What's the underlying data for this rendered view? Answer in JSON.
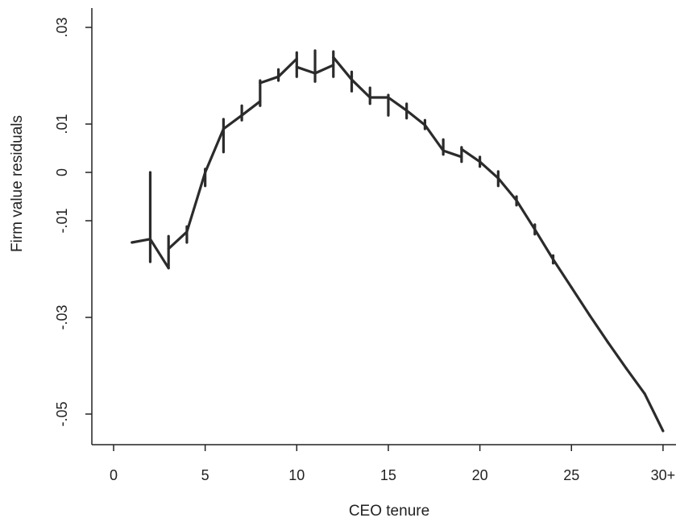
{
  "chart_data": {
    "type": "line",
    "title": "",
    "xlabel": "CEO tenure",
    "ylabel": "Firm value residuals",
    "xlim": [
      -0.5,
      30.5
    ],
    "ylim": [
      -0.055,
      0.0305
    ],
    "grid": false,
    "legend": "none",
    "x_ticks": [
      {
        "value": 0,
        "label": "0"
      },
      {
        "value": 5,
        "label": "5"
      },
      {
        "value": 10,
        "label": "10"
      },
      {
        "value": 15,
        "label": "15"
      },
      {
        "value": 20,
        "label": "20"
      },
      {
        "value": 25,
        "label": "25"
      },
      {
        "value": 30,
        "label": "30+"
      }
    ],
    "y_ticks": [
      {
        "value": 0.03,
        "label": ".03"
      },
      {
        "value": 0.01,
        "label": ".01"
      },
      {
        "value": 0,
        "label": "0"
      },
      {
        "value": -0.01,
        "label": "-.01"
      },
      {
        "value": -0.03,
        "label": "-.03"
      },
      {
        "value": -0.05,
        "label": "-.05"
      }
    ],
    "series": [
      {
        "color": "#2b2b2b",
        "segments": [
          {
            "x": [
              1,
              2
            ],
            "y": [
              -0.0145,
              -0.0138
            ]
          },
          {
            "x": [
              2,
              3
            ],
            "y": [
              -0.0138,
              -0.0198
            ]
          },
          {
            "x": [
              3,
              4
            ],
            "y": [
              -0.0158,
              -0.0123
            ]
          },
          {
            "x": [
              4,
              5
            ],
            "y": [
              -0.0123,
              0.0
            ]
          },
          {
            "x": [
              5,
              6
            ],
            "y": [
              0.0,
              0.009
            ]
          },
          {
            "x": [
              6,
              7
            ],
            "y": [
              0.009,
              0.0118
            ]
          },
          {
            "x": [
              7,
              8
            ],
            "y": [
              0.0118,
              0.0147
            ]
          },
          {
            "x": [
              8,
              9
            ],
            "y": [
              0.0185,
              0.0198
            ]
          },
          {
            "x": [
              9,
              10
            ],
            "y": [
              0.0198,
              0.0235
            ]
          },
          {
            "x": [
              10,
              11
            ],
            "y": [
              0.0218,
              0.0205
            ]
          },
          {
            "x": [
              11,
              12
            ],
            "y": [
              0.0205,
              0.0222
            ]
          },
          {
            "x": [
              12,
              13
            ],
            "y": [
              0.0238,
              0.0192
            ]
          },
          {
            "x": [
              13,
              14
            ],
            "y": [
              0.0192,
              0.0155
            ]
          },
          {
            "x": [
              14,
              15
            ],
            "y": [
              0.0155,
              0.0155
            ]
          },
          {
            "x": [
              15,
              16
            ],
            "y": [
              0.0155,
              0.0128
            ]
          },
          {
            "x": [
              16,
              17
            ],
            "y": [
              0.0128,
              0.0098
            ]
          },
          {
            "x": [
              17,
              18
            ],
            "y": [
              0.0098,
              0.0045
            ]
          },
          {
            "x": [
              18,
              19
            ],
            "y": [
              0.0045,
              0.0032
            ]
          },
          {
            "x": [
              19,
              20
            ],
            "y": [
              0.0048,
              0.0022
            ]
          },
          {
            "x": [
              20,
              21
            ],
            "y": [
              0.0022,
              -0.0012
            ]
          },
          {
            "x": [
              21,
              22
            ],
            "y": [
              -0.0012,
              -0.0058
            ]
          },
          {
            "x": [
              22,
              23
            ],
            "y": [
              -0.0058,
              -0.0118
            ]
          },
          {
            "x": [
              23,
              24
            ],
            "y": [
              -0.0118,
              -0.018
            ]
          },
          {
            "x": [
              24,
              25
            ],
            "y": [
              -0.018,
              -0.0238
            ]
          },
          {
            "x": [
              25,
              26
            ],
            "y": [
              -0.0238,
              -0.0296
            ]
          },
          {
            "x": [
              26,
              27
            ],
            "y": [
              -0.0296,
              -0.0352
            ]
          },
          {
            "x": [
              27,
              28
            ],
            "y": [
              -0.0352,
              -0.0406
            ]
          },
          {
            "x": [
              28,
              29
            ],
            "y": [
              -0.0406,
              -0.0458
            ]
          },
          {
            "x": [
              29,
              30
            ],
            "y": [
              -0.0458,
              -0.0535
            ]
          }
        ],
        "jumps": [
          {
            "x": 2,
            "y_low": -0.0185,
            "y_high": 0.0
          },
          {
            "x": 3,
            "y_low": -0.0198,
            "y_high": -0.0132
          },
          {
            "x": 4,
            "y_low": -0.0145,
            "y_high": -0.0112
          },
          {
            "x": 5,
            "y_low": -0.0028,
            "y_high": 0.0007
          },
          {
            "x": 6,
            "y_low": 0.0042,
            "y_high": 0.011
          },
          {
            "x": 7,
            "y_low": 0.0108,
            "y_high": 0.0138
          },
          {
            "x": 8,
            "y_low": 0.0138,
            "y_high": 0.019
          },
          {
            "x": 9,
            "y_low": 0.019,
            "y_high": 0.0213
          },
          {
            "x": 10,
            "y_low": 0.0198,
            "y_high": 0.0248
          },
          {
            "x": 11,
            "y_low": 0.0188,
            "y_high": 0.0252
          },
          {
            "x": 12,
            "y_low": 0.0198,
            "y_high": 0.025
          },
          {
            "x": 13,
            "y_low": 0.0168,
            "y_high": 0.0208
          },
          {
            "x": 14,
            "y_low": 0.0142,
            "y_high": 0.0175
          },
          {
            "x": 15,
            "y_low": 0.0118,
            "y_high": 0.016
          },
          {
            "x": 16,
            "y_low": 0.0112,
            "y_high": 0.0142
          },
          {
            "x": 17,
            "y_low": 0.009,
            "y_high": 0.0108
          },
          {
            "x": 18,
            "y_low": 0.0037,
            "y_high": 0.0068
          },
          {
            "x": 19,
            "y_low": 0.0022,
            "y_high": 0.0052
          },
          {
            "x": 20,
            "y_low": 0.0012,
            "y_high": 0.0032
          },
          {
            "x": 21,
            "y_low": -0.0028,
            "y_high": 0.0002
          },
          {
            "x": 22,
            "y_low": -0.0068,
            "y_high": -0.005
          },
          {
            "x": 23,
            "y_low": -0.0128,
            "y_high": -0.0108
          },
          {
            "x": 24,
            "y_low": -0.0188,
            "y_high": -0.0172
          }
        ]
      }
    ]
  }
}
